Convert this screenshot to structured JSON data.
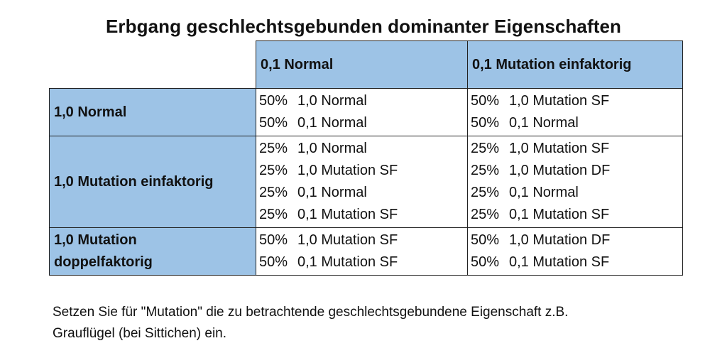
{
  "title": "Erbgang geschlechtsgebunden dominanter Eigenschaften",
  "columns": [
    "0,1 Normal",
    "0,1 Mutation einfaktorig"
  ],
  "rows": [
    {
      "label": "1,0 Normal",
      "cells": [
        [
          {
            "pct": "50%",
            "text": "1,0 Normal"
          },
          {
            "pct": "50%",
            "text": "0,1 Normal"
          }
        ],
        [
          {
            "pct": "50%",
            "text": "1,0 Mutation SF"
          },
          {
            "pct": "50%",
            "text": "0,1 Normal"
          }
        ]
      ]
    },
    {
      "label": "1,0 Mutation einfaktorig",
      "cells": [
        [
          {
            "pct": "25%",
            "text": "1,0 Normal"
          },
          {
            "pct": "25%",
            "text": "1,0 Mutation SF"
          },
          {
            "pct": "25%",
            "text": "0,1 Normal"
          },
          {
            "pct": "25%",
            "text": "0,1 Mutation SF"
          }
        ],
        [
          {
            "pct": "25%",
            "text": "1,0 Mutation SF"
          },
          {
            "pct": "25%",
            "text": "1,0 Mutation DF"
          },
          {
            "pct": "25%",
            "text": "0,1 Normal"
          },
          {
            "pct": "25%",
            "text": "0,1 Mutation SF"
          }
        ]
      ]
    },
    {
      "label_lines": [
        "1,0 Mutation",
        "doppelfaktorig"
      ],
      "cells": [
        [
          {
            "pct": "50%",
            "text": "1,0 Mutation SF"
          },
          {
            "pct": "50%",
            "text": "0,1 Mutation SF"
          }
        ],
        [
          {
            "pct": "50%",
            "text": "1,0 Mutation DF"
          },
          {
            "pct": "50%",
            "text": "0,1 Mutation SF"
          }
        ]
      ]
    }
  ],
  "note_lines": [
    "Setzen Sie für \"Mutation\" die zu betrachtende geschlechtsgebundene Eigenschaft z.B.",
    "Grauflügel (bei Sittichen) ein."
  ]
}
